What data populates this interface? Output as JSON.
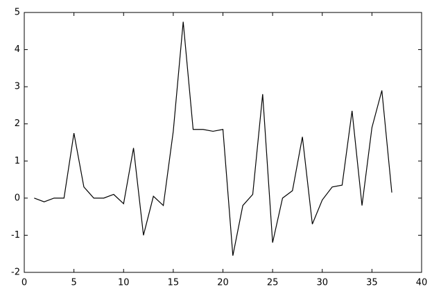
{
  "chart_data": {
    "type": "line",
    "x": [
      1,
      2,
      3,
      4,
      5,
      6,
      7,
      8,
      9,
      10,
      11,
      12,
      13,
      14,
      15,
      16,
      17,
      18,
      19,
      20,
      21,
      22,
      23,
      24,
      25,
      26,
      27,
      28,
      29,
      30,
      31,
      32,
      33,
      34,
      35,
      36,
      37
    ],
    "series": [
      {
        "color": "#000000",
        "values": [
          0,
          -0.1,
          0,
          0,
          1.75,
          0.3,
          0,
          0,
          0.1,
          -0.15,
          1.35,
          -1.0,
          0.05,
          -0.2,
          1.8,
          4.75,
          1.85,
          1.85,
          1.8,
          1.85,
          -1.55,
          -0.2,
          0.1,
          2.8,
          -1.2,
          0,
          0.2,
          1.65,
          -0.7,
          -0.05,
          0.3,
          0.35,
          2.35,
          -0.2,
          1.9,
          2.9,
          0.15
        ]
      }
    ],
    "xlim": [
      0,
      40
    ],
    "xticks": [
      0,
      5,
      10,
      15,
      20,
      25,
      30,
      35,
      40
    ],
    "ylim": [
      -2,
      5
    ],
    "yticks": [
      -2,
      -1,
      0,
      1,
      2,
      3,
      4,
      5
    ],
    "grid": false
  }
}
